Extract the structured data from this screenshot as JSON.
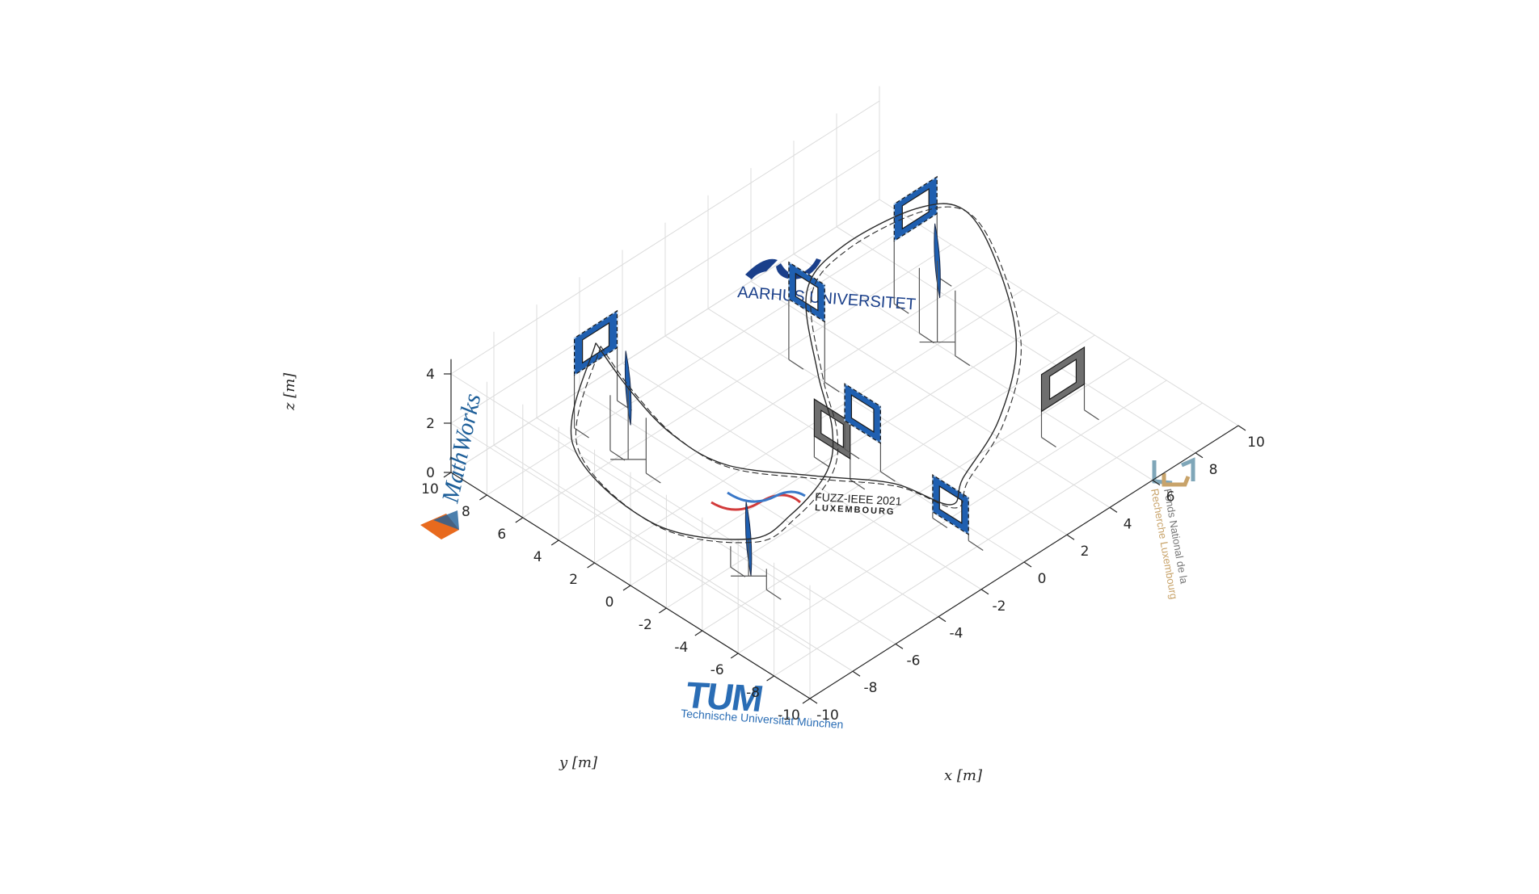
{
  "chart_data": {
    "type": "line",
    "view": "3d",
    "xlabel": "x [m]",
    "ylabel": "y [m]",
    "zlabel": "z [m]",
    "xlim": [
      -10,
      10
    ],
    "ylim": [
      -10,
      10
    ],
    "zlim": [
      0,
      4
    ],
    "xticks": [
      "-10",
      "-8",
      "-6",
      "-4",
      "-2",
      "0",
      "2",
      "4",
      "6",
      "8",
      "10"
    ],
    "yticks": [
      "-10",
      "-8",
      "-6",
      "-4",
      "-2",
      "0",
      "2",
      "4",
      "6",
      "8",
      "10"
    ],
    "zticks": [
      "0",
      "2",
      "4"
    ],
    "grid": true,
    "gates": [
      {
        "kind": "blue",
        "x": -4.5,
        "y": 8.5,
        "z": 2.9,
        "facing": "y"
      },
      {
        "kind": "thin",
        "x": -5.5,
        "y": 5.5,
        "z": 3.0,
        "facing": "x"
      },
      {
        "kind": "blue",
        "x": 2.0,
        "y": 4.5,
        "z": 3.2,
        "facing": "x"
      },
      {
        "kind": "blue",
        "x": 7.5,
        "y": 5.0,
        "z": 3.3,
        "facing": "y"
      },
      {
        "kind": "thin",
        "x": 6.0,
        "y": 2.0,
        "z": 3.4,
        "facing": "x"
      },
      {
        "kind": "gray",
        "x": 6.0,
        "y": -5.0,
        "z": 1.8,
        "facing": "y"
      },
      {
        "kind": "gray",
        "x": -1.0,
        "y": -0.5,
        "z": 1.6,
        "facing": "x"
      },
      {
        "kind": "blue",
        "x": 0.0,
        "y": -1.0,
        "z": 1.9,
        "facing": "x"
      },
      {
        "kind": "thin",
        "x": -7.0,
        "y": -3.0,
        "z": 1.6,
        "facing": "x"
      },
      {
        "kind": "blue",
        "x": -0.5,
        "y": -6.5,
        "z": 1.0,
        "facing": "x"
      }
    ],
    "trajectory": [
      [
        -4.5,
        8.5,
        2.9
      ],
      [
        -5.5,
        5.5,
        3.0
      ],
      [
        -6.0,
        2.5,
        2.8
      ],
      [
        -5.5,
        0.0,
        2.4
      ],
      [
        -3.5,
        -2.5,
        2.0
      ],
      [
        -1.5,
        -4.5,
        1.5
      ],
      [
        -0.5,
        -6.5,
        1.0
      ],
      [
        0.5,
        -6.0,
        1.3
      ],
      [
        3.0,
        -5.0,
        1.8
      ],
      [
        5.5,
        -3.0,
        2.6
      ],
      [
        7.5,
        0.5,
        3.2
      ],
      [
        8.5,
        3.5,
        3.4
      ],
      [
        7.5,
        5.0,
        3.3
      ],
      [
        4.5,
        5.5,
        3.2
      ],
      [
        2.0,
        4.5,
        3.2
      ],
      [
        0.0,
        1.5,
        2.4
      ],
      [
        -1.0,
        -0.5,
        1.6
      ],
      [
        -2.5,
        -2.0,
        1.4
      ],
      [
        -5.0,
        -3.0,
        1.5
      ],
      [
        -7.0,
        -3.0,
        1.6
      ],
      [
        -9.0,
        0.0,
        2.0
      ],
      [
        -8.5,
        5.0,
        2.6
      ],
      [
        -4.5,
        8.5,
        2.9
      ]
    ]
  },
  "logos": {
    "mathworks": "MathWorks",
    "aarhus": "AARHUS UNIVERSITET",
    "tum": "TUM",
    "tum_sub": "Technische Universität München",
    "fuzz_line1": "FUZZ-IEEE 2021",
    "fuzz_line2": "LUXEMBOURG",
    "fnr_line1": "Fonds National de la",
    "fnr_line2": "Recherche Luxembourg"
  },
  "colors": {
    "gate_blue": "#1f5fb0",
    "gate_gray": "#6e6e6e",
    "tum_blue": "#2a6db5",
    "aarhus_blue": "#1a3f8a",
    "mathworks_blue": "#1e5f99",
    "fnr_blue": "#7fa6b8",
    "fnr_gold": "#c8a36a",
    "fuzz_red": "#d23a3a",
    "fuzz_blue": "#3a78c8"
  }
}
